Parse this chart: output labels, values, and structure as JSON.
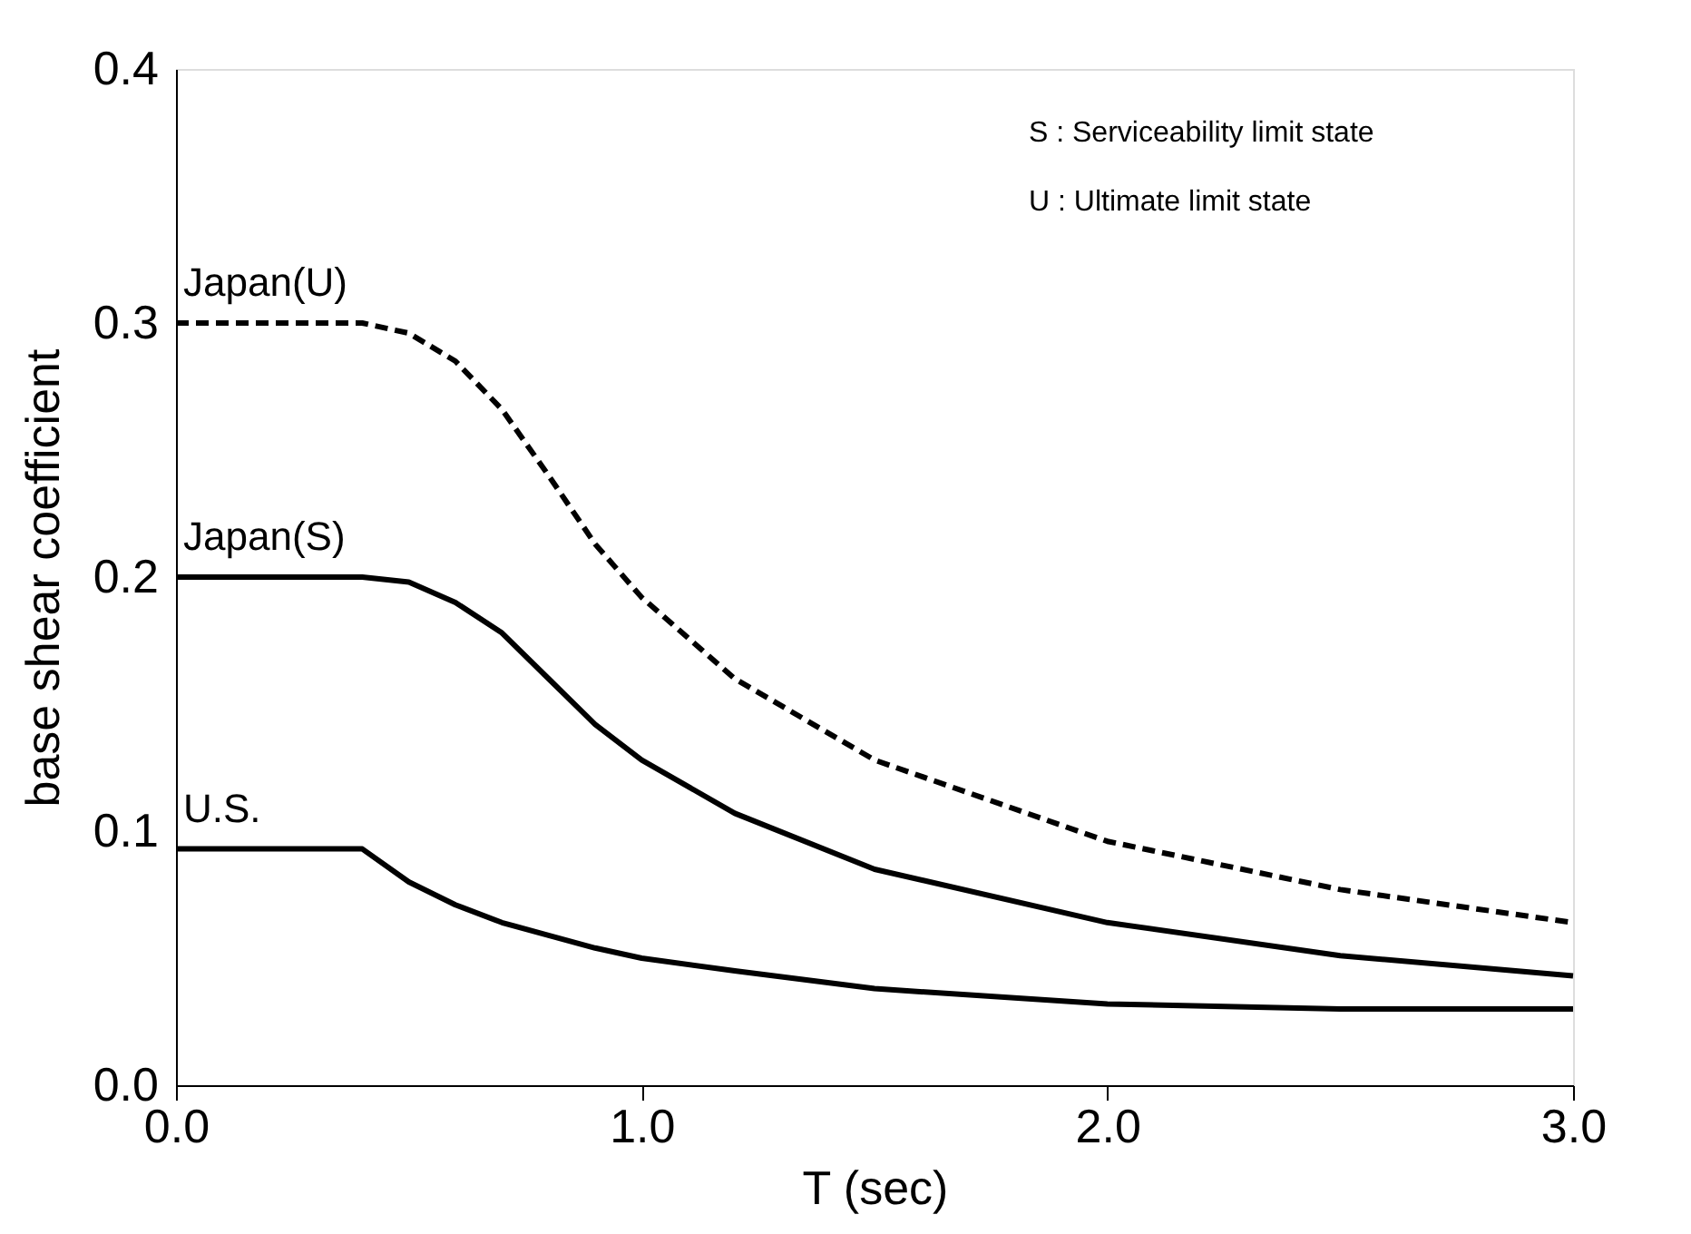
{
  "chart_data": {
    "type": "line",
    "xlabel": "T (sec)",
    "ylabel": "base shear coefficient",
    "annotations": [
      "S : Serviceability limit state",
      "U : Ultimate limit state"
    ],
    "x": [
      0,
      0.4,
      0.5,
      0.6,
      0.7,
      0.8,
      0.9,
      1.0,
      1.2,
      1.5,
      2.0,
      2.5,
      3.0
    ],
    "series": [
      {
        "name": "Japan(U)",
        "color": "#000000",
        "line_style": "dashed",
        "values": [
          0.3,
          0.3,
          0.296,
          0.285,
          0.266,
          0.24,
          0.213,
          0.192,
          0.16,
          0.128,
          0.096,
          0.077,
          0.064
        ]
      },
      {
        "name": "Japan(S)",
        "color": "#000000",
        "line_style": "solid",
        "values": [
          0.2,
          0.2,
          0.198,
          0.19,
          0.178,
          0.16,
          0.142,
          0.128,
          0.107,
          0.085,
          0.064,
          0.051,
          0.043
        ]
      },
      {
        "name": "U.S.",
        "color": "#000000",
        "line_style": "solid",
        "values": [
          0.093,
          0.093,
          0.08,
          0.071,
          0.064,
          0.059,
          0.054,
          0.05,
          0.045,
          0.038,
          0.032,
          0.03,
          0.03
        ]
      }
    ],
    "xlim": [
      0,
      3.0
    ],
    "xticks": [
      {
        "value": 0,
        "label": "0.0"
      },
      {
        "value": 1,
        "label": "1.0"
      },
      {
        "value": 2,
        "label": "2.0"
      },
      {
        "value": 3,
        "label": "3.0"
      }
    ],
    "ylim": [
      0,
      0.4
    ],
    "yticks": [
      {
        "value": 0,
        "label": "0.0"
      },
      0.1,
      0.2,
      0.3,
      0.4
    ],
    "grid": false,
    "marker": "none"
  }
}
